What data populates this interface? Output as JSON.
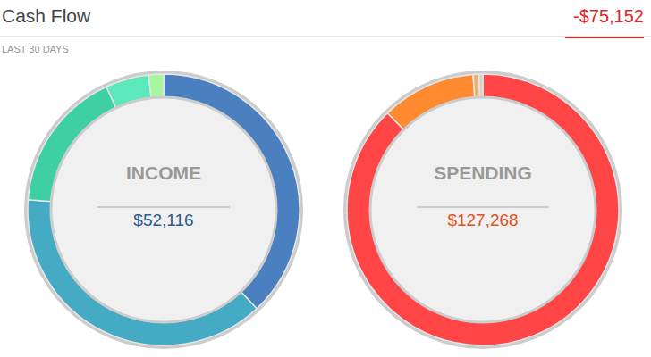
{
  "header": {
    "title": "Cash Flow",
    "net": "-$75,152",
    "period": "LAST 30 DAYS"
  },
  "chart_data": [
    {
      "type": "pie",
      "title": "INCOME",
      "subtitle": "$52,116",
      "values": [
        19800,
        19900,
        8800,
        2700,
        916
      ],
      "colors": [
        "#4a80c0",
        "#45aac4",
        "#3ecfa3",
        "#5de8bc",
        "#a8f5a0"
      ]
    },
    {
      "type": "pie",
      "title": "SPENDING",
      "subtitle": "$127,268",
      "values": [
        111500,
        14300,
        900,
        568
      ],
      "colors": [
        "#ff4545",
        "#ff8a30",
        "#e3b27a",
        "#d8d0c0"
      ]
    }
  ]
}
